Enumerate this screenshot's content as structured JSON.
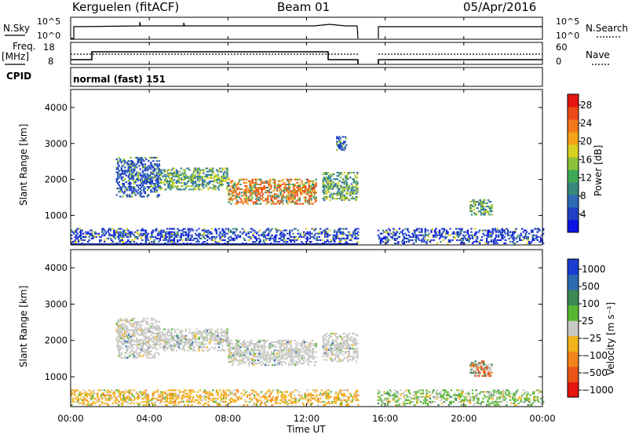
{
  "header": {
    "radar": "Kerguelen (fitACF)",
    "beam": "Beam 01",
    "date": "05/Apr/2016"
  },
  "status_panels": {
    "nsky_label": "N.Sky",
    "nsearch_label": "N.Search",
    "noise_ticks": [
      "10^5",
      "10^0"
    ],
    "freq_label": "Freq.",
    "freq_unit": "[MHz]",
    "freq_ticks": [
      "18",
      "8"
    ],
    "nave_label": "Nave",
    "nave_ticks": [
      "60",
      "0"
    ],
    "cpid_label": "CPID",
    "cpid_value": "normal (fast) 151"
  },
  "x_axis": {
    "label": "Time UT",
    "ticks": [
      "00:00",
      "04:00",
      "08:00",
      "12:00",
      "16:00",
      "20:00",
      "00:00"
    ]
  },
  "chart_data": [
    {
      "type": "heatmap",
      "name": "power-rti",
      "ylabel": "Slant Range [km]",
      "xlabel": "Time UT",
      "xlim": [
        0,
        24
      ],
      "ylim": [
        180,
        4500
      ],
      "yticks": [
        1000,
        2000,
        3000,
        4000
      ],
      "data_gap_hours": [
        14.6,
        15.6
      ],
      "colorbar": {
        "label": "Power [dB]",
        "ticks": [
          "4",
          "8",
          "12",
          "16",
          "20",
          "24",
          "28"
        ],
        "colors": [
          "#0a14e6",
          "#1f3fc4",
          "#2e6bb5",
          "#36897a",
          "#3faa55",
          "#8cc23a",
          "#d7d020",
          "#f4a21a",
          "#f2781a",
          "#ec4a16",
          "#e6150f"
        ]
      },
      "echo_regions": [
        {
          "t0": 2.3,
          "t1": 4.5,
          "r0": 1500,
          "r1": 2600,
          "level": "low"
        },
        {
          "t0": 4.5,
          "t1": 8.0,
          "r0": 1700,
          "r1": 2300,
          "level": "mid"
        },
        {
          "t0": 8.0,
          "t1": 12.5,
          "r0": 1300,
          "r1": 2000,
          "level": "high"
        },
        {
          "t0": 12.8,
          "t1": 14.6,
          "r0": 1400,
          "r1": 2200,
          "level": "mid"
        },
        {
          "t0": 13.5,
          "t1": 14.0,
          "r0": 2800,
          "r1": 3200,
          "level": "low"
        },
        {
          "t0": 20.3,
          "t1": 21.4,
          "r0": 1000,
          "r1": 1450,
          "level": "mid"
        },
        {
          "t0": 0.0,
          "t1": 14.6,
          "r0": 200,
          "r1": 650,
          "level": "ground"
        },
        {
          "t0": 15.6,
          "t1": 24.0,
          "r0": 200,
          "r1": 650,
          "level": "ground"
        }
      ]
    },
    {
      "type": "heatmap",
      "name": "velocity-rti",
      "ylabel": "Slant Range [km]",
      "xlabel": "Time UT",
      "xlim": [
        0,
        24
      ],
      "ylim": [
        180,
        4500
      ],
      "yticks": [
        1000,
        2000,
        3000,
        4000
      ],
      "data_gap_hours": [
        14.6,
        15.6
      ],
      "colorbar": {
        "label": "Velocity [m s⁻¹]",
        "ticks": [
          "1000",
          "500",
          "100",
          "25",
          "−25",
          "−100",
          "−500",
          "−1000"
        ],
        "colors": [
          "#1a3fd0",
          "#2a6ab0",
          "#3b8a55",
          "#55b830",
          "#c8c8c4",
          "#f2b21a",
          "#f2861a",
          "#ec5418",
          "#e6150f"
        ]
      },
      "echo_regions": [
        {
          "t0": 2.3,
          "t1": 4.5,
          "r0": 1500,
          "r1": 2600,
          "level": "gray"
        },
        {
          "t0": 4.5,
          "t1": 8.0,
          "r0": 1700,
          "r1": 2300,
          "level": "gray"
        },
        {
          "t0": 8.0,
          "t1": 12.5,
          "r0": 1300,
          "r1": 2000,
          "level": "gray"
        },
        {
          "t0": 12.8,
          "t1": 14.6,
          "r0": 1400,
          "r1": 2200,
          "level": "gray"
        },
        {
          "t0": 20.3,
          "t1": 21.4,
          "r0": 1000,
          "r1": 1450,
          "level": "mixed"
        },
        {
          "t0": 0.0,
          "t1": 14.6,
          "r0": 200,
          "r1": 650,
          "level": "orange"
        },
        {
          "t0": 15.6,
          "t1": 24.0,
          "r0": 200,
          "r1": 650,
          "level": "green"
        }
      ]
    }
  ]
}
